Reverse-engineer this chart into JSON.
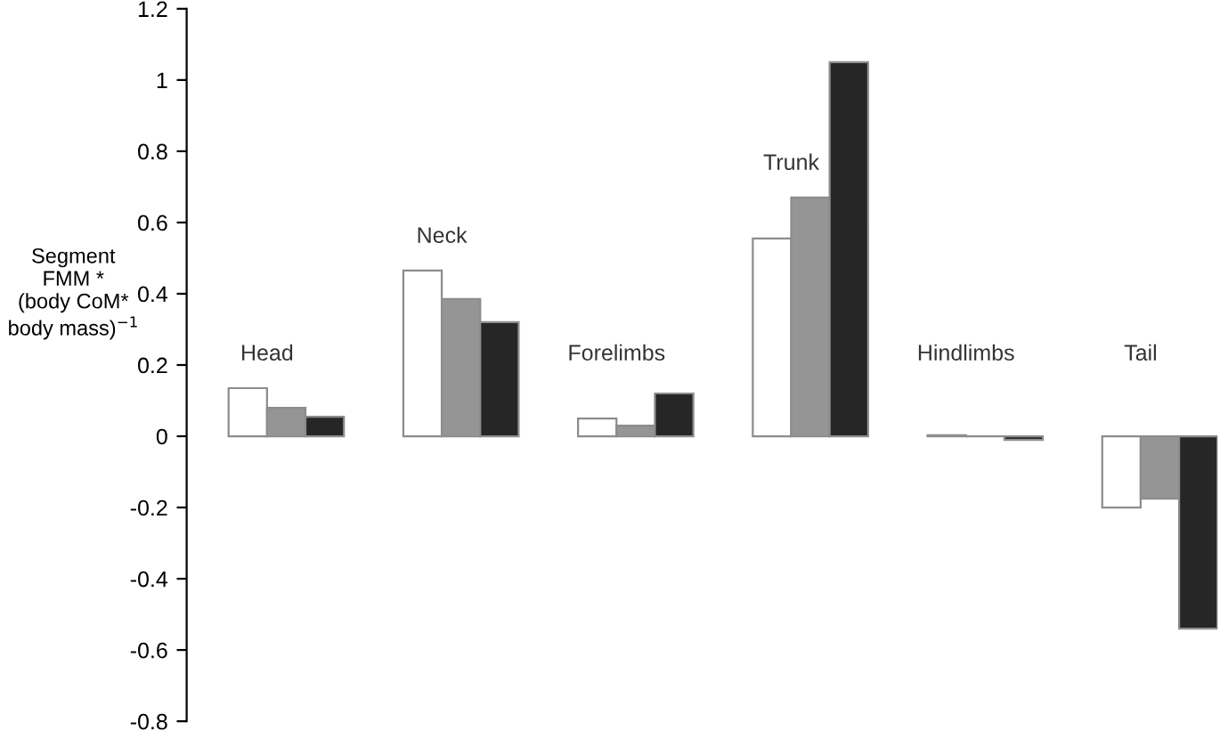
{
  "chart_data": {
    "type": "bar",
    "ylabel": "Segment\nFMM *\n(body CoM*\nbody mass)$^{−1}$",
    "categories": [
      "Head",
      "Neck",
      "Forelimbs",
      "Trunk",
      "Hindlimbs",
      "Tail"
    ],
    "series": [
      {
        "color": "#ffffff",
        "values": [
          0.135,
          0.465,
          0.05,
          0.555,
          0.003,
          -0.2
        ]
      },
      {
        "color": "#959595",
        "values": [
          0.08,
          0.385,
          0.03,
          0.67,
          0.0,
          -0.175
        ]
      },
      {
        "color": "#262626",
        "values": [
          0.055,
          0.32,
          0.12,
          1.05,
          -0.01,
          -0.54
        ]
      }
    ],
    "ylim": [
      -0.8,
      1.2
    ],
    "yticks": [
      -0.8,
      -0.6,
      -0.4,
      -0.2,
      0,
      0.2,
      0.4,
      0.6,
      0.8,
      1,
      1.2
    ],
    "grid": false
  }
}
